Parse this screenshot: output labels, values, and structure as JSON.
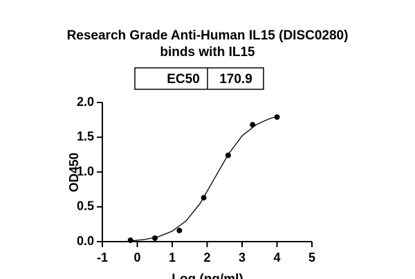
{
  "chart_data": {
    "type": "scatter",
    "title": [
      "Research Grade Anti-Human IL15 (DISC0280)",
      "binds with IL15"
    ],
    "ec50_label": "EC50",
    "ec50_value": 170.9,
    "x_label": "Log (ng/ml)",
    "y_label": "OD450",
    "x": [
      -0.194,
      0.505,
      1.204,
      1.903,
      2.602,
      3.301,
      4.0
    ],
    "values": [
      0.02,
      0.05,
      0.16,
      0.63,
      1.24,
      1.68,
      1.79
    ],
    "color": "#000000",
    "curve": {
      "x": [
        -0.2,
        0.2,
        0.6,
        1.0,
        1.4,
        1.8,
        2.2,
        2.6,
        3.0,
        3.4,
        3.8,
        4.0
      ],
      "values": [
        0.01,
        0.03,
        0.07,
        0.15,
        0.3,
        0.55,
        0.9,
        1.25,
        1.52,
        1.68,
        1.77,
        1.8
      ]
    },
    "xlim": [
      -1,
      5
    ],
    "xticks": [
      -1,
      0,
      1,
      2,
      3,
      4,
      5
    ],
    "ylim": [
      0,
      2
    ],
    "yticks": [
      {
        "value": 0,
        "label": "0.0"
      },
      0.5,
      {
        "value": 1,
        "label": "1.0"
      },
      1.5,
      {
        "value": 2,
        "label": "2.0"
      }
    ]
  }
}
